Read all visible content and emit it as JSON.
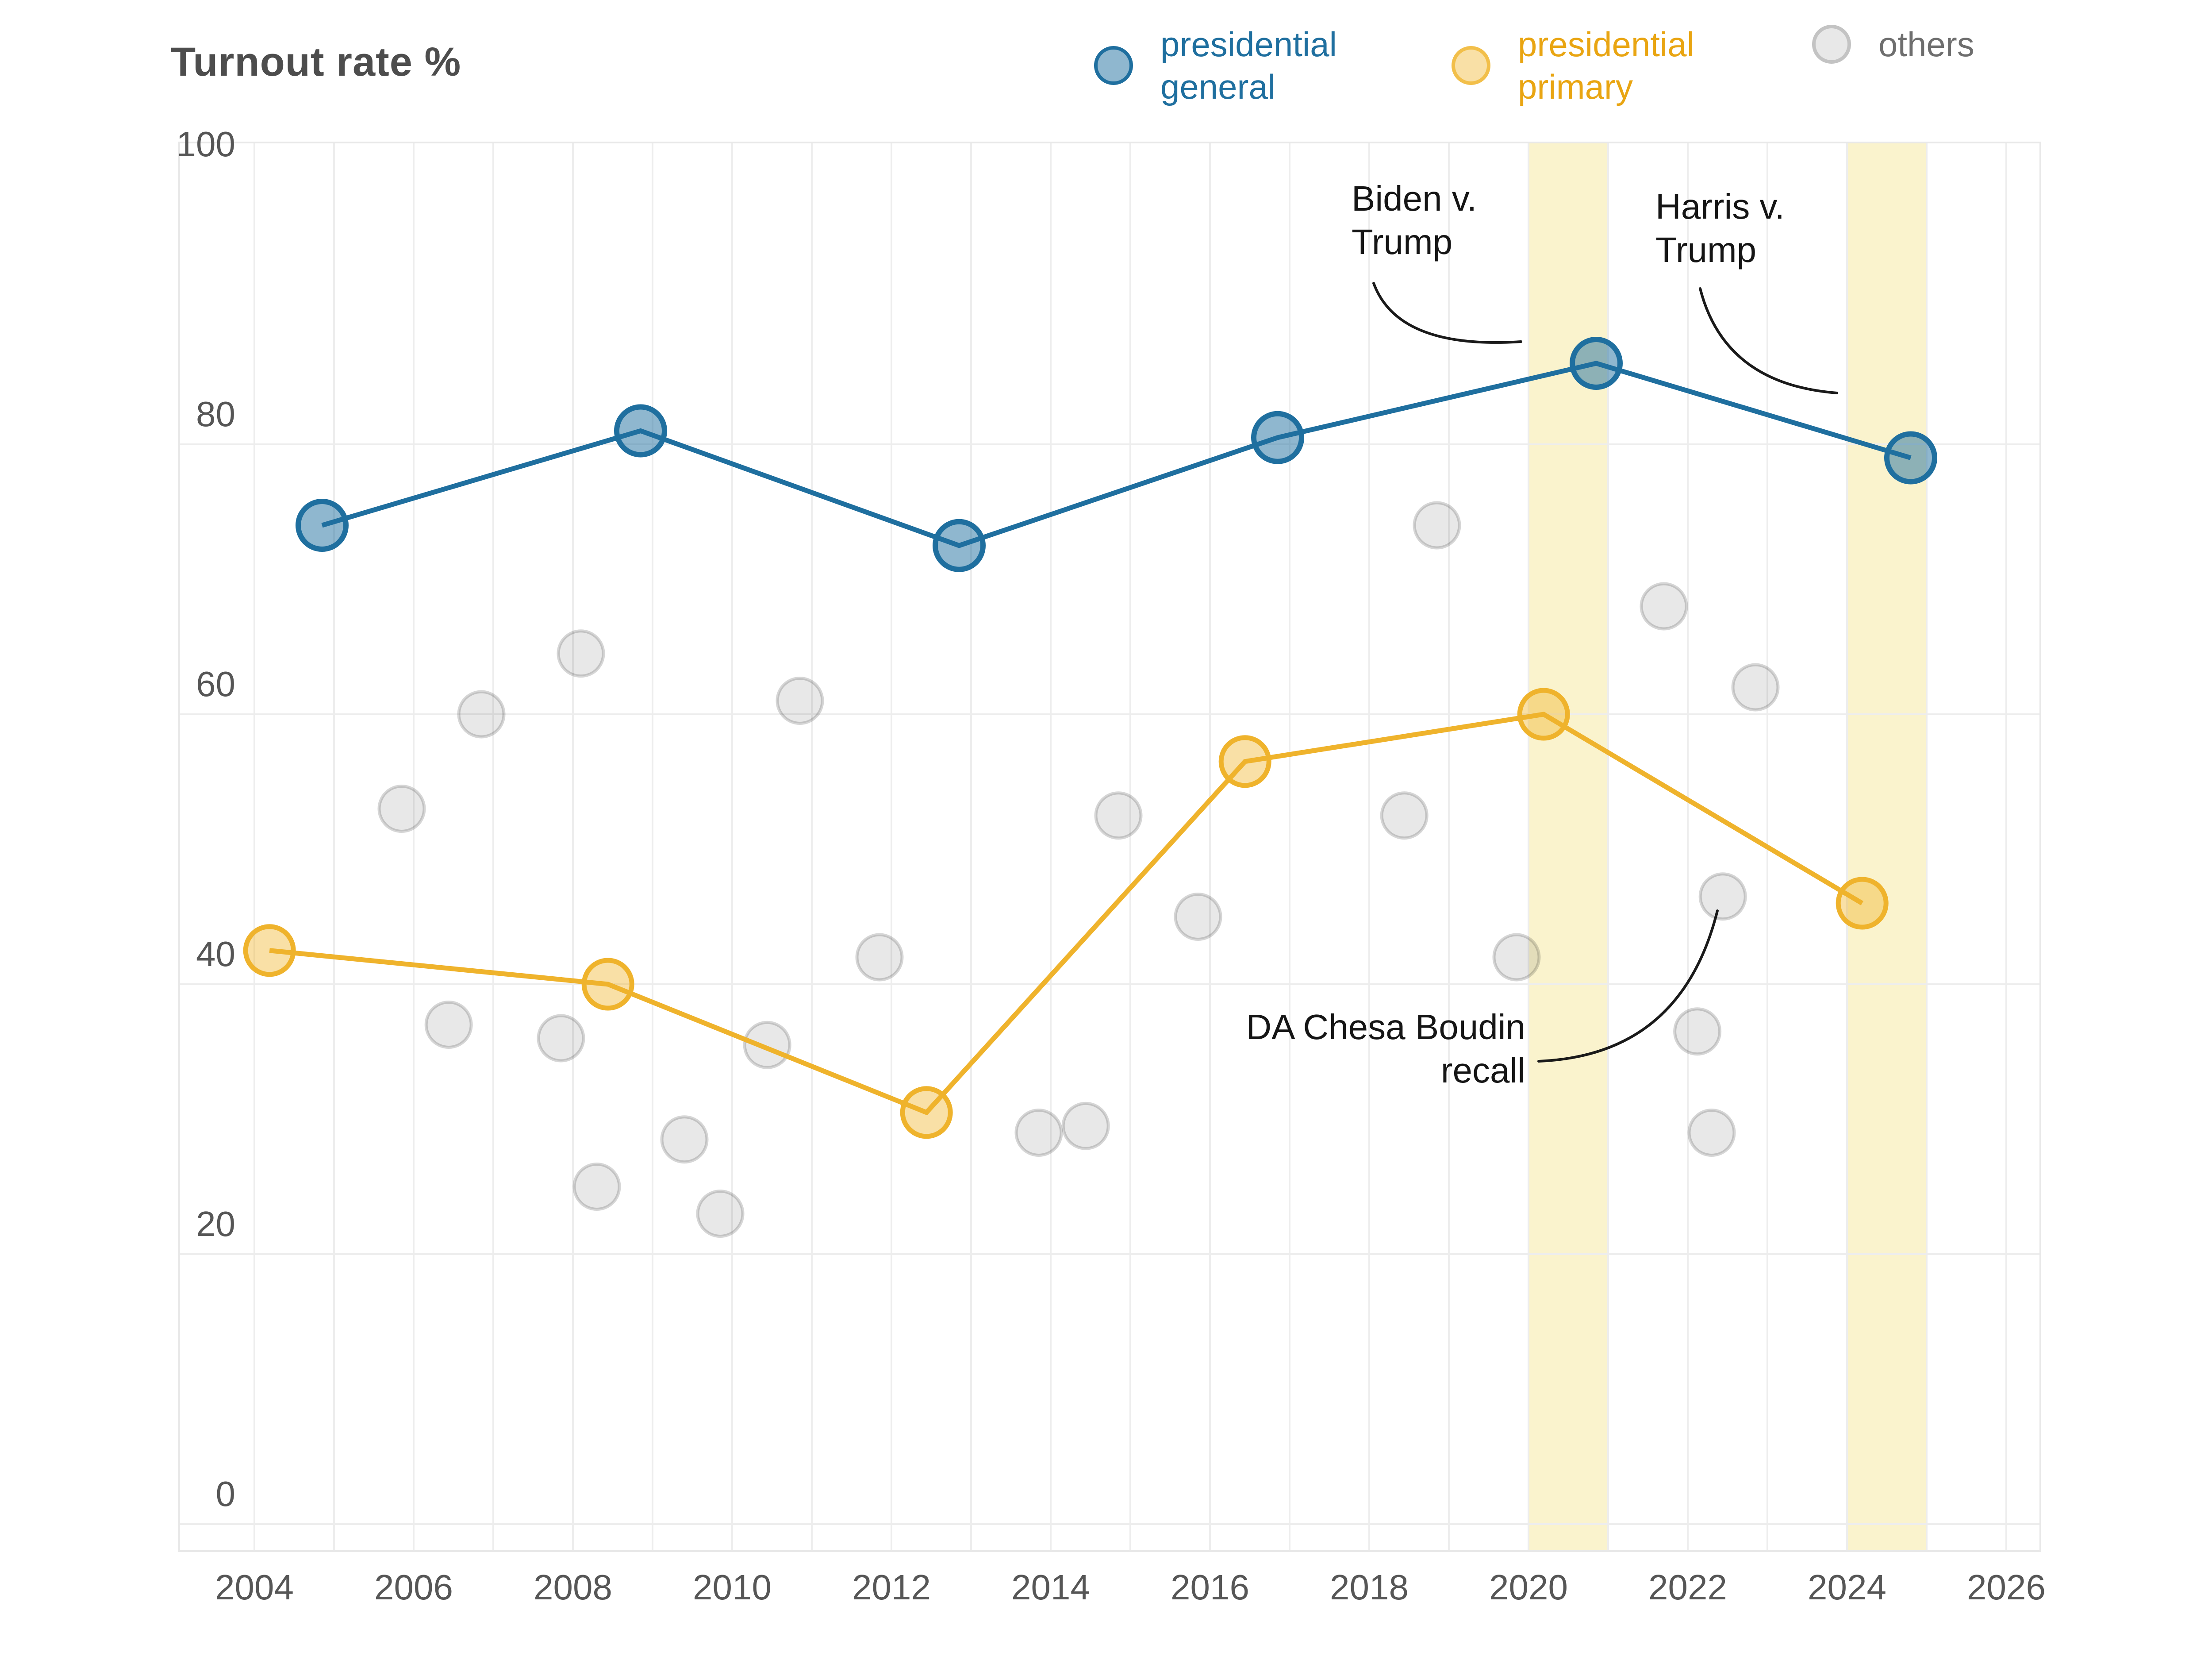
{
  "title": "Turnout rate %",
  "legend": [
    {
      "id": "general",
      "label_lines": [
        "presidential",
        "general"
      ],
      "color": "#1f6f9f"
    },
    {
      "id": "primary",
      "label_lines": [
        "presidential",
        "primary"
      ],
      "color": "#e9a512"
    },
    {
      "id": "others",
      "label_lines": [
        "others"
      ],
      "color": "#6e6e6e"
    }
  ],
  "annotations": [
    {
      "id": "biden",
      "lines": [
        "Biden v.",
        "Trump"
      ]
    },
    {
      "id": "harris",
      "lines": [
        "Harris v.",
        "Trump"
      ]
    },
    {
      "id": "boudin",
      "lines": [
        "DA Chesa Boudin",
        "recall"
      ]
    }
  ],
  "chart_data": {
    "type": "scatter",
    "title": "Turnout rate %",
    "ylabel": "Turnout rate %",
    "xlabel": "",
    "ylim": [
      0,
      100
    ],
    "xlim": [
      2003,
      2026.4
    ],
    "grid": true,
    "legend_position": "top",
    "y_ticks": [
      100,
      80,
      60,
      40,
      20,
      0
    ],
    "x_ticks": [
      2004,
      2006,
      2008,
      2010,
      2012,
      2014,
      2016,
      2018,
      2020,
      2022,
      2024,
      2026
    ],
    "highlight_bands": [
      {
        "from": 2020,
        "to": 2021,
        "label": "Biden v. Trump"
      },
      {
        "from": 2024,
        "to": 2025,
        "label": "Harris v. Trump"
      }
    ],
    "style": {
      "band_color": "#faf3cd",
      "grid_color": "#ededed",
      "border_color": "#e8e8e8",
      "general_color": "#1f6f9f",
      "general_fill": "rgba(31,111,159,0.5)",
      "primary_color": "#efb32c",
      "primary_fill": "rgba(240,180,44,0.42)",
      "others_fill": "rgba(0,0,0,0.09)",
      "others_stroke": "rgba(0,0,0,0.16)",
      "annotation_line_color": "#1a1a1a"
    },
    "series": [
      {
        "name": "presidential general",
        "mode": "line+markers",
        "points": [
          [
            2004.85,
            74
          ],
          [
            2008.85,
            81
          ],
          [
            2012.85,
            72.5
          ],
          [
            2016.85,
            80.5
          ],
          [
            2020.85,
            86
          ],
          [
            2024.8,
            79
          ]
        ]
      },
      {
        "name": "presidential primary",
        "mode": "line+markers",
        "points": [
          [
            2004.19,
            42.5
          ],
          [
            2008.44,
            40
          ],
          [
            2012.44,
            30.5
          ],
          [
            2016.44,
            56.5
          ],
          [
            2020.19,
            60
          ],
          [
            2024.19,
            46
          ]
        ]
      },
      {
        "name": "others",
        "mode": "markers",
        "points": [
          [
            2005.85,
            53
          ],
          [
            2006.44,
            37
          ],
          [
            2006.85,
            60
          ],
          [
            2007.85,
            36
          ],
          [
            2008.1,
            64.5
          ],
          [
            2008.3,
            25
          ],
          [
            2009.4,
            28.5
          ],
          [
            2009.85,
            23
          ],
          [
            2010.44,
            35.5
          ],
          [
            2010.85,
            61
          ],
          [
            2011.85,
            42
          ],
          [
            2013.85,
            29
          ],
          [
            2014.44,
            29.5
          ],
          [
            2014.85,
            52.5
          ],
          [
            2015.85,
            45
          ],
          [
            2018.44,
            52.5
          ],
          [
            2018.85,
            74
          ],
          [
            2019.85,
            42
          ],
          [
            2021.7,
            68
          ],
          [
            2022.12,
            36.5
          ],
          [
            2022.3,
            29
          ],
          [
            2022.44,
            46.5
          ],
          [
            2022.85,
            62
          ]
        ]
      }
    ]
  }
}
